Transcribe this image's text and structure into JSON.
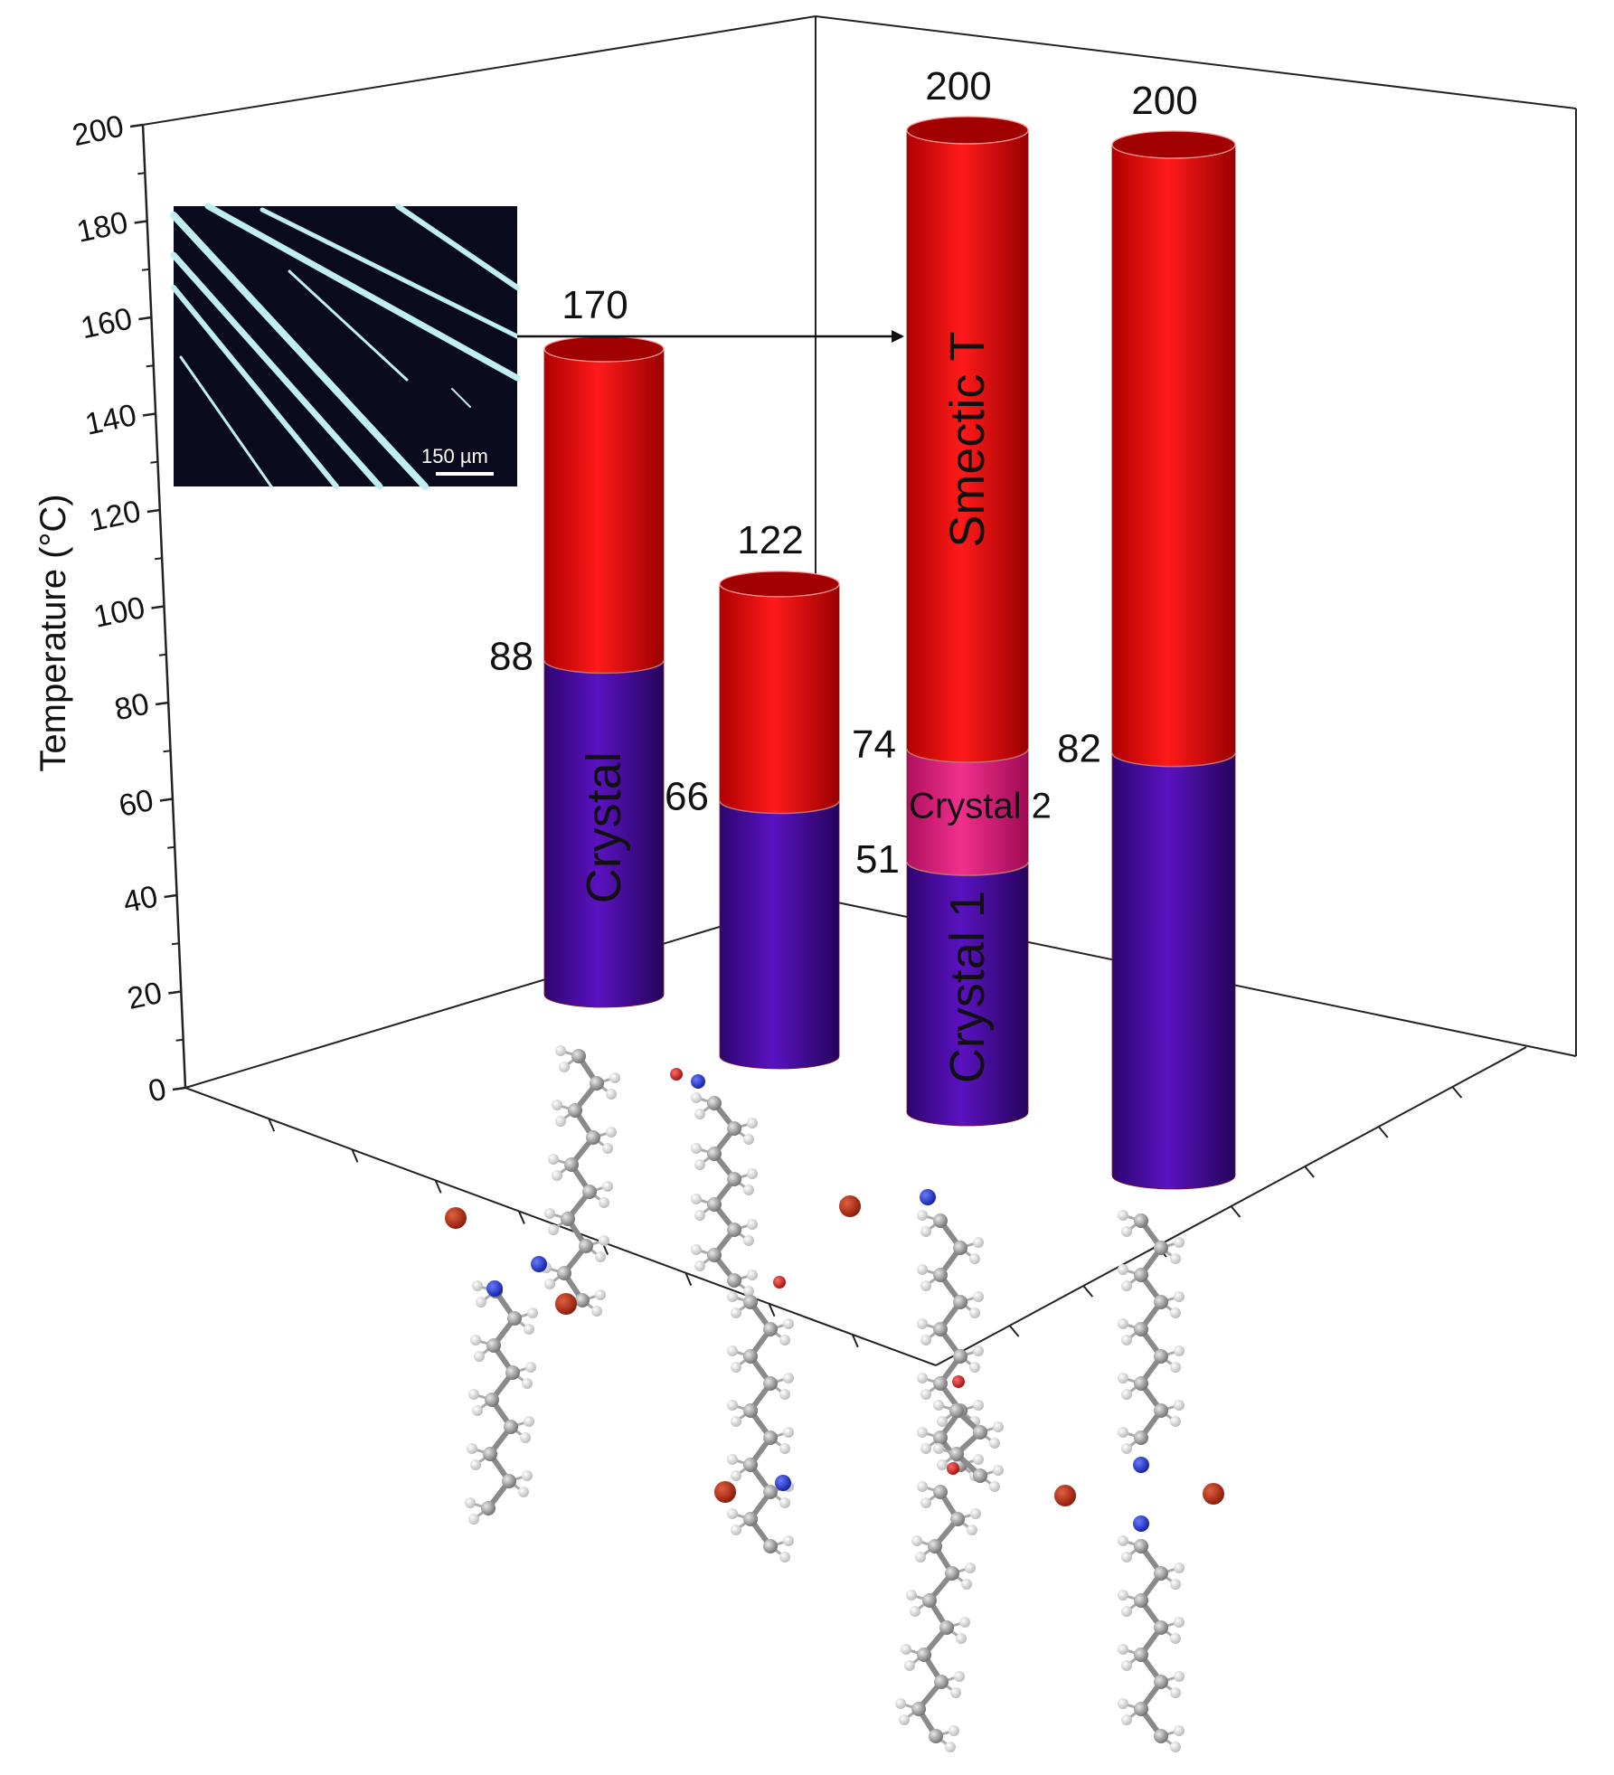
{
  "chart_data": {
    "type": "bar",
    "style": "3d-cylinder-stacked",
    "ylabel": "Temperature (°C)",
    "ylim": [
      0,
      200
    ],
    "yticks": [
      "0",
      "20",
      "40",
      "60",
      "80",
      "100",
      "120",
      "140",
      "160",
      "180",
      "200"
    ],
    "grid": false,
    "colors": {
      "crystal": "#4a0aa0",
      "crystal2": "#e0207a",
      "smectic": "#ee0a0a"
    },
    "bars": [
      {
        "segments": [
          {
            "phase": "Crystal",
            "from": 0,
            "to": 88,
            "color": "crystal"
          },
          {
            "phase": "",
            "from": 88,
            "to": 170,
            "color": "smectic"
          }
        ],
        "labels": {
          "top": "170",
          "transition": "88",
          "phase": "Crystal"
        }
      },
      {
        "segments": [
          {
            "phase": "",
            "from": 0,
            "to": 66,
            "color": "crystal"
          },
          {
            "phase": "",
            "from": 66,
            "to": 122,
            "color": "smectic"
          }
        ],
        "labels": {
          "top": "122",
          "transition": "66"
        }
      },
      {
        "segments": [
          {
            "phase": "Crystal 1",
            "from": 0,
            "to": 51,
            "color": "crystal"
          },
          {
            "phase": "Crystal 2",
            "from": 51,
            "to": 74,
            "color": "crystal2"
          },
          {
            "phase": "Smectic T",
            "from": 74,
            "to": 200,
            "color": "smectic"
          }
        ],
        "labels": {
          "top": "200",
          "transition": "74",
          "transition2": "51",
          "phase": "Smectic T",
          "phase_mid": "Crystal 2",
          "phase_low": "Crystal 1"
        }
      },
      {
        "segments": [
          {
            "phase": "",
            "from": 0,
            "to": 82,
            "color": "crystal"
          },
          {
            "phase": "",
            "from": 82,
            "to": 200,
            "color": "smectic"
          }
        ],
        "labels": {
          "top": "200",
          "transition": "82"
        }
      }
    ],
    "inset": {
      "scale_bar": "150 µm"
    }
  }
}
